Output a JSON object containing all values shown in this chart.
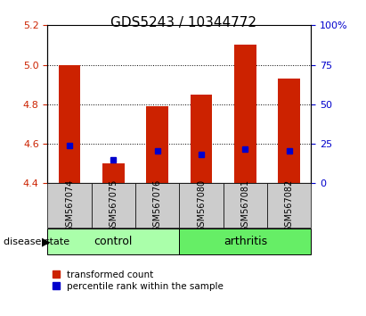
{
  "title": "GDS5243 / 10344772",
  "samples": [
    "GSM567074",
    "GSM567075",
    "GSM567076",
    "GSM567080",
    "GSM567081",
    "GSM567082"
  ],
  "red_bar_tops": [
    5.0,
    4.5,
    4.79,
    4.85,
    5.1,
    4.93
  ],
  "blue_square_vals": [
    4.59,
    4.52,
    4.565,
    4.545,
    4.575,
    4.565
  ],
  "bar_bottom": 4.4,
  "ylim_left": [
    4.4,
    5.2
  ],
  "ylim_right": [
    0,
    100
  ],
  "yticks_left": [
    4.4,
    4.6,
    4.8,
    5.0,
    5.2
  ],
  "yticks_right": [
    0,
    25,
    50,
    75,
    100
  ],
  "ytick_labels_right": [
    "0",
    "25",
    "50",
    "75",
    "100%"
  ],
  "left_color": "#cc2200",
  "right_color": "#0000cc",
  "bar_color": "#cc2200",
  "blue_color": "#0000cc",
  "grid_color": "#000000",
  "group_labels": [
    "control",
    "arthritis"
  ],
  "group_ranges": [
    [
      0,
      3
    ],
    [
      3,
      6
    ]
  ],
  "group_colors": [
    "#aaffaa",
    "#66ee66"
  ],
  "disease_state_label": "disease state",
  "legend_red_label": "transformed count",
  "legend_blue_label": "percentile rank within the sample",
  "tick_box_color": "#cccccc",
  "bar_width": 0.5,
  "title_fontsize": 11,
  "axis_fontsize": 8,
  "tick_fontsize": 8,
  "sample_label_fontsize": 7
}
